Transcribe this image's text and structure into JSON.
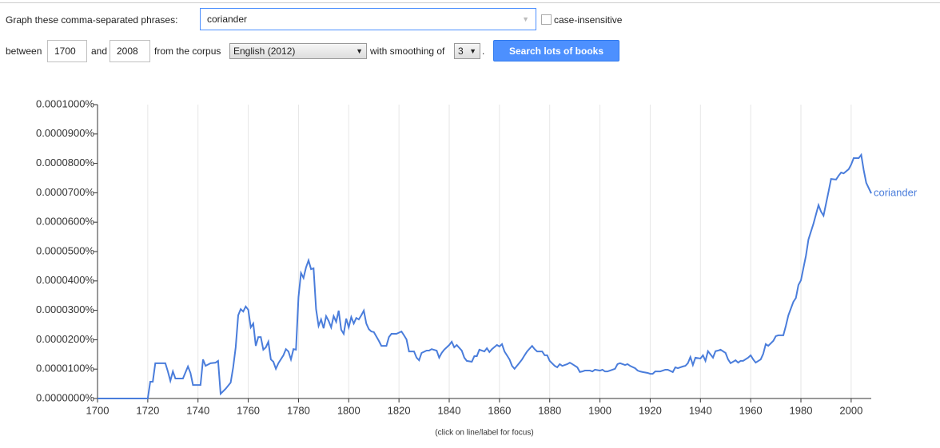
{
  "form": {
    "phrases_label": "Graph these comma-separated phrases:",
    "phrases": "coriander",
    "case_label": "case-insensitive",
    "between_label": "between",
    "start_year": "1700",
    "and_label": "and",
    "end_year": "2008",
    "corpus_label": "from the corpus",
    "corpus": "English (2012)",
    "smoothing_label": "with smoothing of",
    "smoothing": "3",
    "smoothing_suffix": ".",
    "button": "Search lots of books"
  },
  "chart_data": {
    "type": "line",
    "note": "(click on line/label for focus)",
    "x": [
      1700,
      1720,
      1721,
      1722,
      1723,
      1727,
      1728,
      1729,
      1730,
      1731,
      1734,
      1736,
      1737,
      1738,
      1741,
      1742,
      1743,
      1745,
      1747,
      1748,
      1749,
      1751,
      1753,
      1754,
      1755,
      1756,
      1757,
      1758,
      1759,
      1760,
      1761,
      1762,
      1763,
      1764,
      1765,
      1766,
      1767,
      1768,
      1769,
      1770,
      1771,
      1772,
      1774,
      1775,
      1776,
      1777,
      1778,
      1779,
      1780,
      1781,
      1782,
      1783,
      1784,
      1785,
      1786,
      1787,
      1788,
      1789,
      1790,
      1791,
      1792,
      1793,
      1794,
      1795,
      1796,
      1797,
      1798,
      1799,
      1800,
      1801,
      1802,
      1803,
      1804,
      1805,
      1806,
      1807,
      1808,
      1809,
      1810,
      1812,
      1813,
      1815,
      1816,
      1817,
      1819,
      1821,
      1822,
      1823,
      1824,
      1826,
      1827,
      1828,
      1829,
      1831,
      1832,
      1833,
      1835,
      1836,
      1837,
      1838,
      1840,
      1841,
      1842,
      1843,
      1845,
      1846,
      1847,
      1849,
      1850,
      1851,
      1852,
      1854,
      1855,
      1856,
      1857,
      1859,
      1860,
      1861,
      1862,
      1864,
      1865,
      1866,
      1868,
      1869,
      1870,
      1871,
      1873,
      1874,
      1875,
      1877,
      1878,
      1879,
      1880,
      1882,
      1883,
      1884,
      1885,
      1887,
      1888,
      1889,
      1891,
      1892,
      1893,
      1894,
      1896,
      1897,
      1898,
      1900,
      1901,
      1902,
      1903,
      1905,
      1906,
      1907,
      1908,
      1910,
      1911,
      1912,
      1914,
      1915,
      1916,
      1917,
      1919,
      1920,
      1921,
      1922,
      1924,
      1925,
      1926,
      1927,
      1929,
      1930,
      1931,
      1933,
      1934,
      1935,
      1936,
      1937,
      1938,
      1940,
      1941,
      1942,
      1943,
      1945,
      1946,
      1947,
      1948,
      1950,
      1951,
      1952,
      1954,
      1955,
      1956,
      1957,
      1959,
      1960,
      1961,
      1962,
      1964,
      1965,
      1966,
      1967,
      1969,
      1970,
      1971,
      1973,
      1974,
      1975,
      1977,
      1978,
      1979,
      1980,
      1982,
      1983,
      1984,
      1985,
      1987,
      1988,
      1989,
      1991,
      1992,
      1994,
      1995,
      1996,
      1997,
      1999,
      2000,
      2001,
      2003,
      2004,
      2005,
      2006,
      2008
    ],
    "series": [
      {
        "name": "coriander",
        "color": "#4a7ddb",
        "values": [
          0,
          0,
          5.7e-06,
          5.7e-06,
          1.2e-05,
          1.2e-05,
          9.2e-06,
          6e-06,
          9.2e-06,
          6.8e-06,
          6.8e-06,
          1.09e-05,
          8.7e-06,
          4.6e-06,
          4.6e-06,
          1.33e-05,
          1.11e-05,
          1.2e-05,
          1.22e-05,
          1.28e-05,
          1.6e-06,
          3.3e-06,
          5.4e-06,
          1.06e-05,
          1.74e-05,
          2.83e-05,
          3.04e-05,
          2.96e-05,
          3.13e-05,
          3.02e-05,
          2.42e-05,
          2.55e-05,
          1.79e-05,
          2.09e-05,
          2.09e-05,
          1.66e-05,
          1.74e-05,
          1.93e-05,
          1.33e-05,
          1.25e-05,
          1.01e-05,
          1.2e-05,
          1.47e-05,
          1.68e-05,
          1.6e-05,
          1.33e-05,
          1.68e-05,
          1.66e-05,
          3.45e-05,
          4.27e-05,
          4.1e-05,
          4.46e-05,
          4.7e-05,
          4.4e-05,
          4.43e-05,
          3.04e-05,
          2.47e-05,
          2.69e-05,
          2.39e-05,
          2.8e-05,
          2.64e-05,
          2.42e-05,
          2.8e-05,
          2.61e-05,
          2.99e-05,
          2.34e-05,
          2.2e-05,
          2.72e-05,
          2.42e-05,
          2.77e-05,
          2.55e-05,
          2.74e-05,
          2.69e-05,
          2.83e-05,
          2.99e-05,
          2.55e-05,
          2.36e-05,
          2.28e-05,
          2.26e-05,
          1.96e-05,
          1.79e-05,
          1.79e-05,
          2.09e-05,
          2.2e-05,
          2.2e-05,
          2.28e-05,
          2.15e-05,
          2.01e-05,
          1.6e-05,
          1.6e-05,
          1.39e-05,
          1.3e-05,
          1.55e-05,
          1.63e-05,
          1.63e-05,
          1.68e-05,
          1.63e-05,
          1.39e-05,
          1.55e-05,
          1.66e-05,
          1.82e-05,
          1.93e-05,
          1.74e-05,
          1.82e-05,
          1.63e-05,
          1.39e-05,
          1.28e-05,
          1.25e-05,
          1.44e-05,
          1.44e-05,
          1.66e-05,
          1.6e-05,
          1.71e-05,
          1.58e-05,
          1.68e-05,
          1.82e-05,
          1.77e-05,
          1.85e-05,
          1.6e-05,
          1.33e-05,
          1.11e-05,
          1.01e-05,
          1.22e-05,
          1.33e-05,
          1.47e-05,
          1.6e-05,
          1.79e-05,
          1.68e-05,
          1.6e-05,
          1.6e-05,
          1.47e-05,
          1.47e-05,
          1.28e-05,
          1.11e-05,
          1.06e-05,
          1.17e-05,
          1.11e-05,
          1.17e-05,
          1.22e-05,
          1.17e-05,
          1.06e-05,
          9e-06,
          9.2e-06,
          9.5e-06,
          9.5e-06,
          9.2e-06,
          9.8e-06,
          9.5e-06,
          9.8e-06,
          9.2e-06,
          9.2e-06,
          9.8e-06,
          1.01e-05,
          1.17e-05,
          1.2e-05,
          1.14e-05,
          1.17e-05,
          1.11e-05,
          1.03e-05,
          9.5e-06,
          9.2e-06,
          9e-06,
          8.7e-06,
          8.4e-06,
          8.4e-06,
          9.2e-06,
          9.2e-06,
          9.5e-06,
          9.8e-06,
          9.8e-06,
          9e-06,
          1.06e-05,
          1.03e-05,
          1.09e-05,
          1.11e-05,
          1.2e-05,
          1.41e-05,
          1.14e-05,
          1.39e-05,
          1.36e-05,
          1.47e-05,
          1.28e-05,
          1.61e-05,
          1.39e-05,
          1.61e-05,
          1.63e-05,
          1.66e-05,
          1.55e-05,
          1.33e-05,
          1.2e-05,
          1.3e-05,
          1.22e-05,
          1.28e-05,
          1.28e-05,
          1.39e-05,
          1.47e-05,
          1.33e-05,
          1.22e-05,
          1.33e-05,
          1.52e-05,
          1.85e-05,
          1.79e-05,
          1.96e-05,
          2.12e-05,
          2.15e-05,
          2.15e-05,
          2.47e-05,
          2.83e-05,
          3.29e-05,
          3.42e-05,
          3.86e-05,
          4.02e-05,
          4.86e-05,
          5.41e-05,
          5.68e-05,
          5.95e-05,
          6.58e-05,
          6.36e-05,
          6.22e-05,
          7.04e-05,
          7.47e-05,
          7.45e-05,
          7.58e-05,
          7.69e-05,
          7.66e-05,
          7.8e-05,
          7.96e-05,
          8.18e-05,
          8.18e-05,
          8.29e-05,
          7.77e-05,
          7.34e-05,
          6.98e-05
        ]
      }
    ],
    "xlim": [
      1700,
      2008
    ],
    "xticks": [
      1700,
      1720,
      1740,
      1760,
      1780,
      1800,
      1820,
      1840,
      1860,
      1880,
      1900,
      1920,
      1940,
      1960,
      1980,
      2000
    ],
    "ylim": [
      0,
      0.0001
    ],
    "yticks": [
      {
        "value": 0,
        "label": "0.0000000%"
      },
      {
        "value": 1e-05,
        "label": "0.0000100%"
      },
      {
        "value": 2e-05,
        "label": "0.0000200%"
      },
      {
        "value": 3e-05,
        "label": "0.0000300%"
      },
      {
        "value": 4e-05,
        "label": "0.0000400%"
      },
      {
        "value": 5e-05,
        "label": "0.0000500%"
      },
      {
        "value": 6e-05,
        "label": "0.0000600%"
      },
      {
        "value": 7e-05,
        "label": "0.0000700%"
      },
      {
        "value": 8e-05,
        "label": "0.0000800%"
      },
      {
        "value": 9e-05,
        "label": "0.0000900%"
      },
      {
        "value": 0.0001,
        "label": "0.0001000%"
      }
    ],
    "grid": "x"
  }
}
